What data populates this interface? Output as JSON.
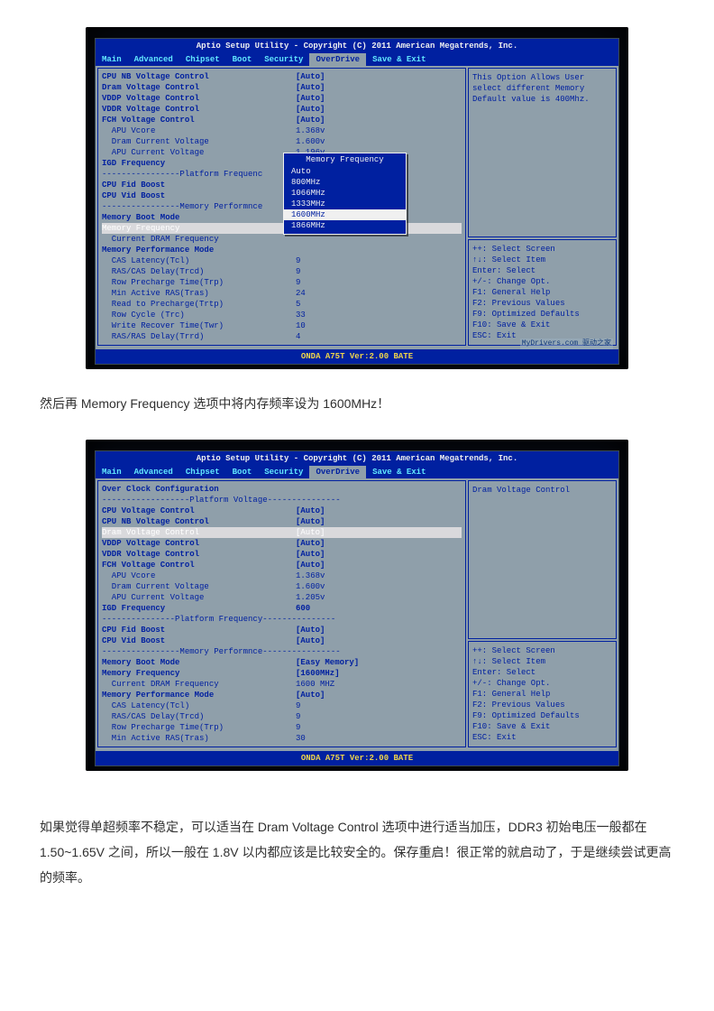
{
  "bios_title": "Aptio Setup Utility - Copyright (C) 2011 American Megatrends, Inc.",
  "menu": [
    "Main",
    "Advanced",
    "Chipset",
    "Boot",
    "Security",
    "OverDrive",
    "Save & Exit"
  ],
  "menu_active": "OverDrive",
  "footer": "ONDA A75T Ver:2.00 BATE",
  "watermark": "MyDrivers.com 驱动之家",
  "caption1": "然后再 Memory Frequency 选项中将内存频率设为 1600MHz！",
  "caption2": "如果觉得单超频率不稳定，可以适当在 Dram Voltage Control 选项中进行适当加压，DDR3 初始电压一般都在 1.50~1.65V 之间，所以一般在 1.8V 以内都应该是比较安全的。保存重启！很正常的就启动了，于是继续尝试更高的频率。",
  "screen1": {
    "help": "This Option Allows User select different Memory Default value is 400Mhz.",
    "rows": [
      {
        "lbl": "CPU NB Voltage Control",
        "val": "[Auto]",
        "cls": "heading"
      },
      {
        "lbl": "Dram Voltage Control",
        "val": "[Auto]",
        "cls": "heading"
      },
      {
        "lbl": "VDDP Voltage Control",
        "val": "[Auto]",
        "cls": "heading"
      },
      {
        "lbl": "VDDR Voltage Control",
        "val": "[Auto]",
        "cls": "heading"
      },
      {
        "lbl": "FCH Voltage Control",
        "val": "[Auto]",
        "cls": "heading"
      },
      {
        "lbl": "  APU Vcore",
        "val": "1.368v"
      },
      {
        "lbl": "  Dram Current Voltage",
        "val": "1.600v"
      },
      {
        "lbl": "  APU Current Voltage",
        "val": "1.196v"
      },
      {
        "lbl": "IGD Frequency",
        "val": "",
        "cls": "heading"
      },
      {
        "lbl": "----------------Platform Frequenc",
        "val": "",
        "cls": "divider"
      },
      {
        "lbl": "CPU Fid Boost",
        "val": "",
        "cls": "heading"
      },
      {
        "lbl": "CPU Vid Boost",
        "val": "",
        "cls": "heading"
      },
      {
        "lbl": "----------------Memory Performnce",
        "val": "",
        "cls": "divider"
      },
      {
        "lbl": "Memory Boot Mode",
        "val": "",
        "cls": "heading"
      },
      {
        "lbl": "Memory Frequency",
        "val": "",
        "cls": "sel-row"
      },
      {
        "lbl": "  Current DRAM Frequency",
        "val": ""
      },
      {
        "lbl": "Memory Performance Mode",
        "val": "",
        "cls": "heading"
      },
      {
        "lbl": "  CAS Latency(Tcl)",
        "val": "9"
      },
      {
        "lbl": "  RAS/CAS Delay(Trcd)",
        "val": "9"
      },
      {
        "lbl": "  Row Precharge Time(Trp)",
        "val": "9"
      },
      {
        "lbl": "  Min Active RAS(Tras)",
        "val": "24"
      },
      {
        "lbl": "  Read to Precharge(Trtp)",
        "val": "5"
      },
      {
        "lbl": "  Row Cycle (Trc)",
        "val": "33"
      },
      {
        "lbl": "  Write Recover Time(Twr)",
        "val": "10"
      },
      {
        "lbl": "  RAS/RAS Delay(Trrd)",
        "val": "4"
      }
    ],
    "popup": {
      "title": "Memory Frequency",
      "items": [
        "Auto",
        "800MHz",
        "1066MHz",
        "1333MHz",
        "1600MHz",
        "1866MHz"
      ],
      "selected": "1600MHz"
    }
  },
  "screen2": {
    "help": "Dram Voltage Control",
    "rows": [
      {
        "lbl": "Over Clock Configuration",
        "val": "",
        "cls": "heading"
      },
      {
        "lbl": "",
        "val": ""
      },
      {
        "lbl": "------------------Platform Voltage---------------",
        "val": "",
        "cls": "divider"
      },
      {
        "lbl": "CPU Voltage Control",
        "val": "[Auto]",
        "cls": "heading"
      },
      {
        "lbl": "CPU NB Voltage Control",
        "val": "[Auto]",
        "cls": "heading"
      },
      {
        "lbl": "Dram Voltage Control",
        "val": "[Auto]",
        "cls": "sel-row"
      },
      {
        "lbl": "VDDP Voltage Control",
        "val": "[Auto]",
        "cls": "heading"
      },
      {
        "lbl": "VDDR Voltage Control",
        "val": "[Auto]",
        "cls": "heading"
      },
      {
        "lbl": "FCH Voltage Control",
        "val": "[Auto]",
        "cls": "heading"
      },
      {
        "lbl": "  APU Vcore",
        "val": "1.368v"
      },
      {
        "lbl": "  Dram Current Voltage",
        "val": "1.600v"
      },
      {
        "lbl": "  APU Current Voltage",
        "val": "1.205v"
      },
      {
        "lbl": "IGD Frequency",
        "val": "600",
        "cls": "heading"
      },
      {
        "lbl": "---------------Platform Frequency---------------",
        "val": "",
        "cls": "divider"
      },
      {
        "lbl": "CPU Fid Boost",
        "val": "[Auto]",
        "cls": "heading"
      },
      {
        "lbl": "CPU Vid Boost",
        "val": "[Auto]",
        "cls": "heading"
      },
      {
        "lbl": "----------------Memory Performnce----------------",
        "val": "",
        "cls": "divider"
      },
      {
        "lbl": "Memory Boot Mode",
        "val": "[Easy Memory]",
        "cls": "heading"
      },
      {
        "lbl": "Memory Frequency",
        "val": "[1600MHz]",
        "cls": "heading"
      },
      {
        "lbl": "  Current DRAM Frequency",
        "val": "1600 MHZ"
      },
      {
        "lbl": "Memory Performance Mode",
        "val": "[Auto]",
        "cls": "heading"
      },
      {
        "lbl": "  CAS Latency(Tcl)",
        "val": "9"
      },
      {
        "lbl": "  RAS/CAS Delay(Trcd)",
        "val": "9"
      },
      {
        "lbl": "  Row Precharge Time(Trp)",
        "val": "9"
      },
      {
        "lbl": "  Min Active RAS(Tras)",
        "val": "30"
      }
    ]
  },
  "keyhelp": [
    "++: Select Screen",
    "↑↓: Select Item",
    "Enter: Select",
    "+/-: Change Opt.",
    "F1: General Help",
    "F2: Previous Values",
    "F9: Optimized Defaults",
    "F10: Save & Exit",
    "ESC: Exit"
  ]
}
